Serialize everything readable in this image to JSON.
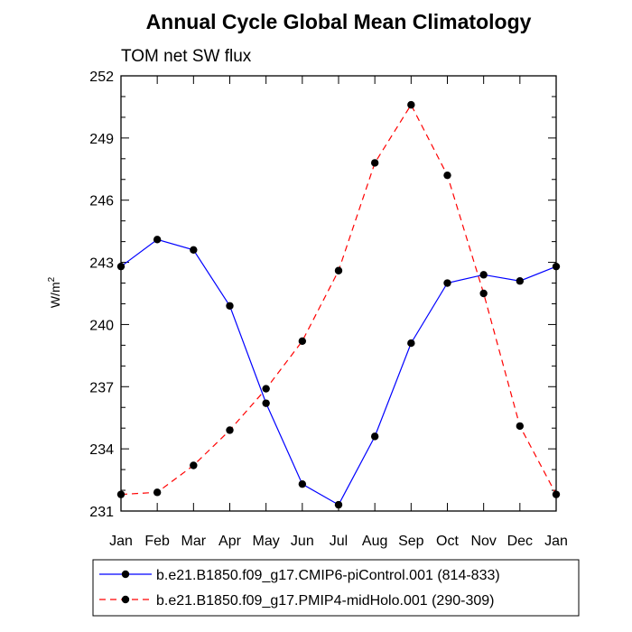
{
  "chart_data": {
    "type": "line",
    "title": "Annual Cycle Global Mean Climatology",
    "subtitle": "TOM net SW flux",
    "xlabel": "",
    "ylabel": "W/m",
    "ylabel_superscript": "2",
    "categories": [
      "Jan",
      "Feb",
      "Mar",
      "Apr",
      "May",
      "Jun",
      "Jul",
      "Aug",
      "Sep",
      "Oct",
      "Nov",
      "Dec",
      "Jan"
    ],
    "ylim": [
      231,
      252
    ],
    "yticks": [
      "231",
      "234",
      "237",
      "240",
      "243",
      "246",
      "249",
      "252"
    ],
    "grid": false,
    "legend_position": "bottom",
    "series": [
      {
        "name": "b.e21.B1850.f09_g17.CMIP6-piControl.001 (814-833)",
        "color": "#0000ff",
        "dash": "solid",
        "values": [
          242.8,
          244.1,
          243.6,
          240.9,
          236.2,
          232.3,
          231.3,
          234.6,
          239.1,
          242.0,
          242.4,
          242.1,
          242.8
        ]
      },
      {
        "name": "b.e21.B1850.f09_g17.PMIP4-midHolo.001 (290-309)",
        "color": "#ff0000",
        "dash": "dashed",
        "values": [
          231.8,
          231.9,
          233.2,
          234.9,
          236.9,
          239.2,
          242.6,
          247.8,
          250.6,
          247.2,
          241.5,
          235.1,
          231.8
        ]
      }
    ]
  }
}
